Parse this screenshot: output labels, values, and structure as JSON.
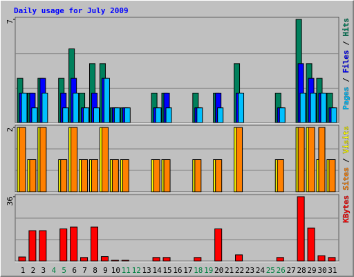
{
  "chart_data": [
    {
      "type": "bar",
      "title": "Daily usage for July 2009",
      "ylim": [
        0,
        7
      ],
      "yticks": [
        7
      ],
      "legend_separator": " / ",
      "series": [
        {
          "name": "Hits",
          "color": "#00805c",
          "values": [
            3,
            2,
            3,
            0,
            3,
            5,
            2,
            4,
            4,
            1,
            1,
            0,
            0,
            2,
            2,
            0,
            0,
            2,
            0,
            2,
            0,
            4,
            0,
            0,
            0,
            2,
            0,
            7,
            4,
            3,
            2
          ]
        },
        {
          "name": "Files",
          "color": "#0000ff",
          "values": [
            2,
            2,
            3,
            0,
            2,
            3,
            1,
            2,
            3,
            1,
            1,
            0,
            0,
            1,
            2,
            0,
            0,
            1,
            0,
            2,
            0,
            2,
            0,
            0,
            0,
            1,
            0,
            4,
            3,
            2,
            1
          ]
        },
        {
          "name": "Pages",
          "color": "#00c0ff",
          "values": [
            2,
            1,
            2,
            0,
            1,
            2,
            1,
            1,
            3,
            1,
            1,
            0,
            0,
            1,
            1,
            0,
            0,
            1,
            0,
            1,
            0,
            2,
            0,
            0,
            0,
            1,
            0,
            2,
            2,
            2,
            1
          ]
        }
      ]
    },
    {
      "type": "bar",
      "ylim": [
        0,
        2
      ],
      "yticks": [
        2
      ],
      "legend_separator": " / ",
      "series": [
        {
          "name": "Visits",
          "color": "#ffff00",
          "values": [
            2,
            1,
            2,
            0,
            1,
            2,
            1,
            1,
            2,
            1,
            1,
            0,
            0,
            1,
            1,
            0,
            0,
            1,
            0,
            1,
            0,
            2,
            0,
            0,
            0,
            1,
            0,
            2,
            2,
            1,
            1
          ]
        },
        {
          "name": "Sites",
          "color": "#ff8000",
          "values": [
            2,
            1,
            2,
            0,
            1,
            2,
            1,
            1,
            2,
            1,
            1,
            0,
            0,
            1,
            1,
            0,
            0,
            1,
            0,
            1,
            0,
            2,
            0,
            0,
            0,
            1,
            0,
            2,
            2,
            2,
            1
          ]
        }
      ]
    },
    {
      "type": "bar",
      "ylim": [
        0,
        36
      ],
      "yticks": [
        36
      ],
      "categories": [
        "1",
        "2",
        "3",
        "4",
        "5",
        "6",
        "7",
        "8",
        "9",
        "10",
        "11",
        "12",
        "13",
        "14",
        "15",
        "16",
        "17",
        "18",
        "19",
        "20",
        "21",
        "22",
        "23",
        "24",
        "25",
        "26",
        "27",
        "28",
        "29",
        "30",
        "31"
      ],
      "label_colors": [
        "#000000",
        "#000000",
        "#000000",
        "#008040",
        "#008040",
        "#000000",
        "#000000",
        "#000000",
        "#000000",
        "#000000",
        "#008040",
        "#008040",
        "#000000",
        "#000000",
        "#000000",
        "#000000",
        "#000000",
        "#008040",
        "#008040",
        "#000000",
        "#000000",
        "#000000",
        "#000000",
        "#000000",
        "#008040",
        "#008040",
        "#000000",
        "#000000",
        "#000000",
        "#000000",
        "#000000"
      ],
      "series": [
        {
          "name": "KBytes",
          "color": "#ff0000",
          "values": [
            2.3,
            17,
            17,
            0,
            18,
            19,
            2,
            19,
            2.5,
            0.5,
            0.5,
            0,
            0,
            2,
            2,
            0,
            0,
            2,
            0,
            18,
            0,
            3.5,
            0,
            0,
            0,
            2,
            0,
            36,
            18.5,
            3,
            2
          ]
        }
      ]
    }
  ]
}
